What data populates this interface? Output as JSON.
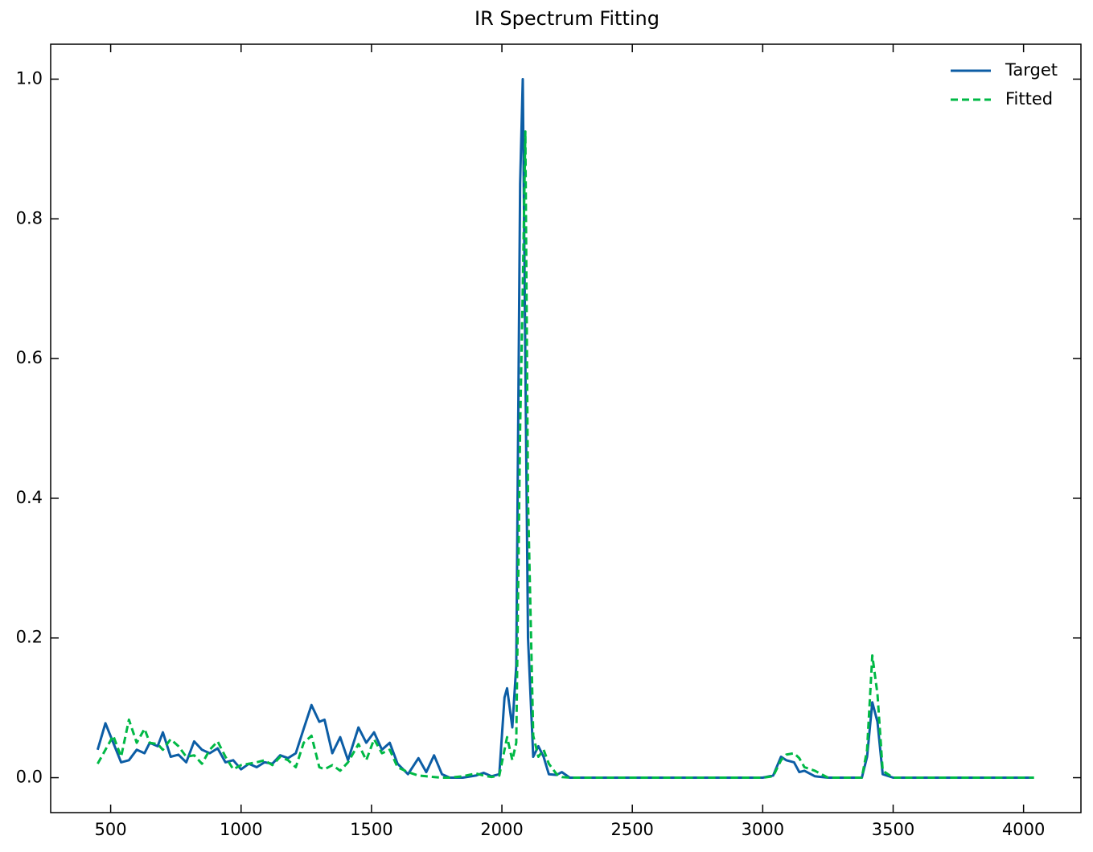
{
  "chart_data": {
    "type": "line",
    "title": "IR Spectrum Fitting",
    "x": [
      450,
      480,
      510,
      540,
      570,
      600,
      630,
      650,
      680,
      700,
      730,
      760,
      790,
      820,
      850,
      880,
      910,
      940,
      970,
      1000,
      1030,
      1060,
      1090,
      1120,
      1150,
      1180,
      1210,
      1240,
      1270,
      1300,
      1320,
      1350,
      1380,
      1410,
      1450,
      1480,
      1510,
      1540,
      1570,
      1600,
      1640,
      1680,
      1710,
      1740,
      1770,
      1800,
      1850,
      1900,
      1930,
      1960,
      1990,
      2010,
      2020,
      2040,
      2055,
      2070,
      2080,
      2090,
      2100,
      2120,
      2140,
      2160,
      2180,
      2210,
      2230,
      2260,
      2500,
      3000,
      3040,
      3070,
      3090,
      3120,
      3140,
      3160,
      3200,
      3250,
      3380,
      3400,
      3420,
      3440,
      3460,
      3500,
      4040
    ],
    "series": [
      {
        "name": "Target",
        "color": "#0c5da5",
        "dashed": false,
        "values": [
          0.04,
          0.078,
          0.05,
          0.022,
          0.025,
          0.04,
          0.035,
          0.05,
          0.045,
          0.065,
          0.03,
          0.033,
          0.022,
          0.052,
          0.04,
          0.035,
          0.042,
          0.022,
          0.025,
          0.012,
          0.02,
          0.015,
          0.022,
          0.02,
          0.032,
          0.028,
          0.035,
          0.07,
          0.104,
          0.08,
          0.083,
          0.035,
          0.058,
          0.025,
          0.072,
          0.05,
          0.065,
          0.04,
          0.05,
          0.02,
          0.005,
          0.028,
          0.008,
          0.032,
          0.005,
          0,
          0,
          0.003,
          0.007,
          0.002,
          0.005,
          0.115,
          0.128,
          0.072,
          0.16,
          0.85,
          1.0,
          0.6,
          0.2,
          0.03,
          0.045,
          0.03,
          0.005,
          0.004,
          0.008,
          0,
          0,
          0,
          0.003,
          0.03,
          0.025,
          0.022,
          0.008,
          0.01,
          0.002,
          0,
          0,
          0.03,
          0.108,
          0.08,
          0.005,
          0,
          0
        ]
      },
      {
        "name": "Fitted",
        "color": "#00b945",
        "dashed": true,
        "values": [
          0.02,
          0.04,
          0.06,
          0.03,
          0.083,
          0.05,
          0.07,
          0.05,
          0.048,
          0.04,
          0.055,
          0.045,
          0.03,
          0.032,
          0.02,
          0.04,
          0.052,
          0.03,
          0.012,
          0.018,
          0.02,
          0.022,
          0.025,
          0.018,
          0.03,
          0.025,
          0.015,
          0.05,
          0.06,
          0.015,
          0.012,
          0.018,
          0.01,
          0.022,
          0.048,
          0.025,
          0.055,
          0.035,
          0.04,
          0.015,
          0.008,
          0.003,
          0.002,
          0.001,
          0,
          0,
          0.002,
          0.006,
          0.003,
          0.001,
          0.003,
          0.04,
          0.058,
          0.025,
          0.05,
          0.5,
          0.7,
          0.925,
          0.4,
          0.06,
          0.03,
          0.04,
          0.02,
          0.005,
          0.001,
          0,
          0,
          0,
          0.002,
          0.025,
          0.033,
          0.035,
          0.028,
          0.015,
          0.01,
          0,
          0,
          0.04,
          0.175,
          0.12,
          0.01,
          0,
          0
        ]
      }
    ],
    "xlim": [
      270,
      4220
    ],
    "xticks": [
      500,
      1000,
      1500,
      2000,
      2500,
      3000,
      3500,
      4000
    ],
    "ylim": [
      -0.05,
      1.05
    ],
    "yticks": [
      {
        "value": 0,
        "label": "0.0"
      },
      0.2,
      0.4,
      0.6,
      0.8,
      {
        "value": 1,
        "label": "1.0"
      }
    ],
    "legend": "upper right",
    "grid": false
  }
}
